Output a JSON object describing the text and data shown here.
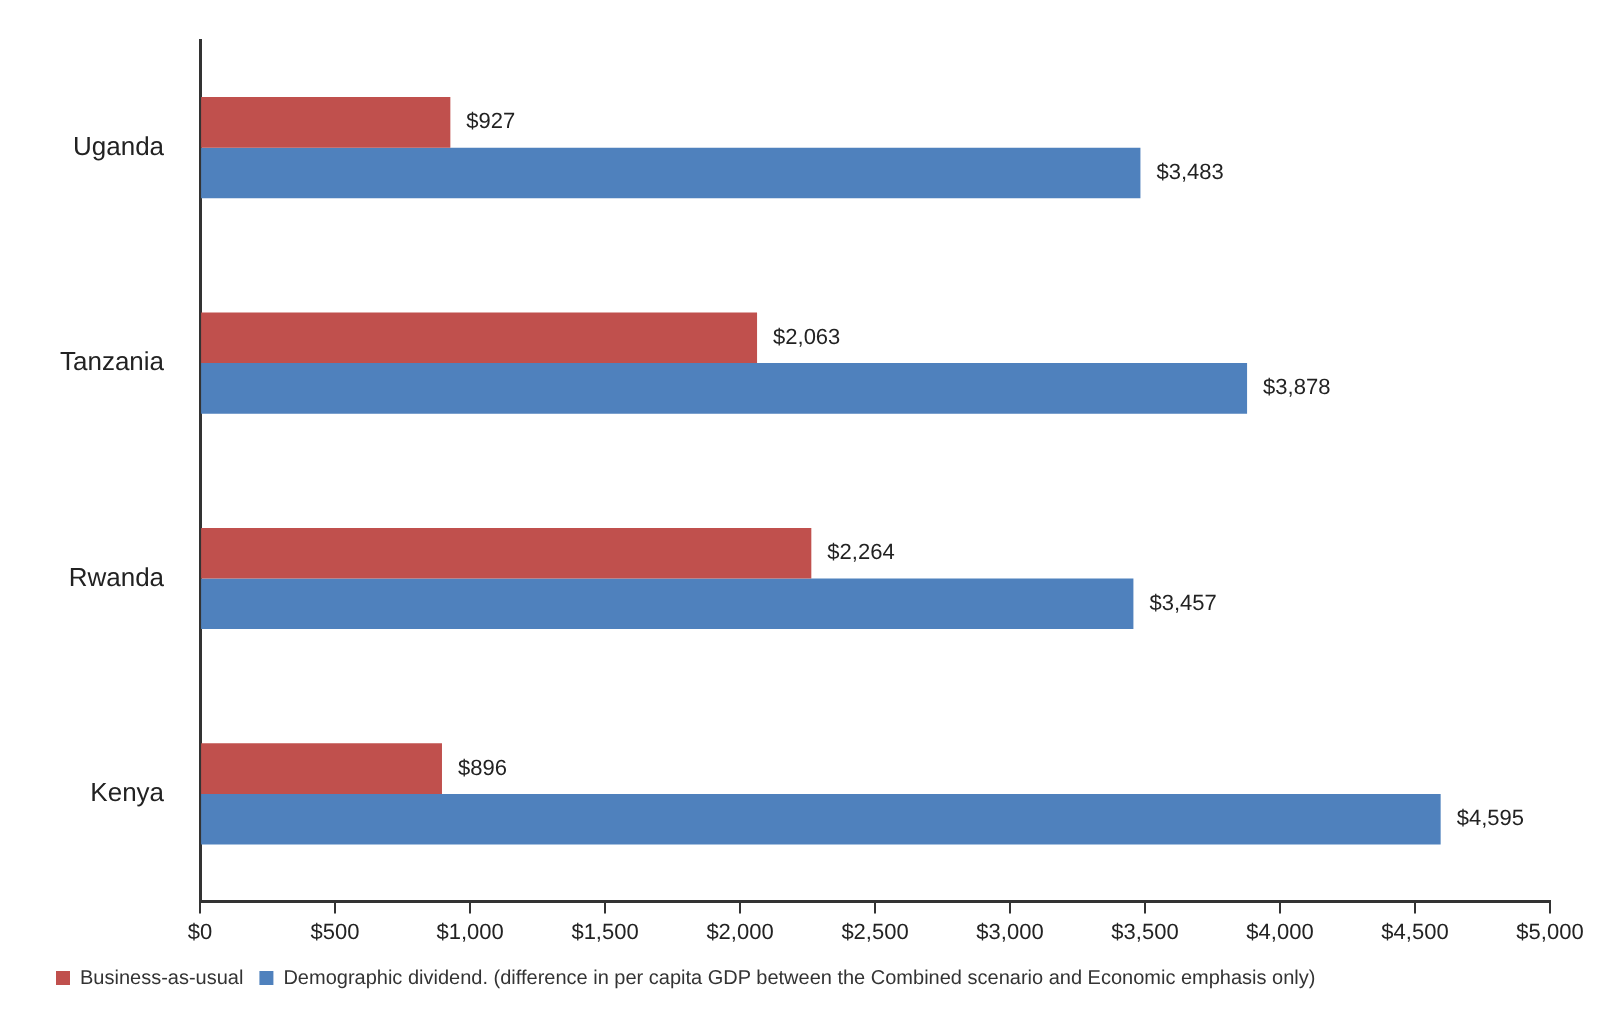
{
  "chart_data": {
    "type": "bar",
    "orientation": "horizontal",
    "categories": [
      "Uganda",
      "Tanzania",
      "Rwanda",
      "Kenya"
    ],
    "series": [
      {
        "name": "Business-as-usual",
        "color": "#c0504d",
        "values": [
          927,
          2063,
          2264,
          896
        ],
        "value_labels": [
          "$927",
          "$2,063",
          "$2,264",
          "$896"
        ]
      },
      {
        "name": "Demographic dividend. (difference in per capita GDP between the Combined scenario and Economic emphasis only)",
        "color": "#4f81bd",
        "values": [
          3483,
          3878,
          3457,
          4595
        ],
        "value_labels": [
          "$3,483",
          "$3,878",
          "$3,457",
          "$4,595"
        ]
      }
    ],
    "xlim": [
      0,
      5000
    ],
    "xticks": [
      {
        "value": 0,
        "label": "$0"
      },
      {
        "value": 500,
        "label": "$500"
      },
      {
        "value": 1000,
        "label": "$1,000"
      },
      {
        "value": 1500,
        "label": "$1,500"
      },
      {
        "value": 2000,
        "label": "$2,000"
      },
      {
        "value": 2500,
        "label": "$2,500"
      },
      {
        "value": 3000,
        "label": "$3,000"
      },
      {
        "value": 3500,
        "label": "$3,500"
      },
      {
        "value": 4000,
        "label": "$4,000"
      },
      {
        "value": 4500,
        "label": "$4,500"
      },
      {
        "value": 5000,
        "label": "$5,000"
      }
    ],
    "grid": false,
    "legend": "bottom left"
  }
}
